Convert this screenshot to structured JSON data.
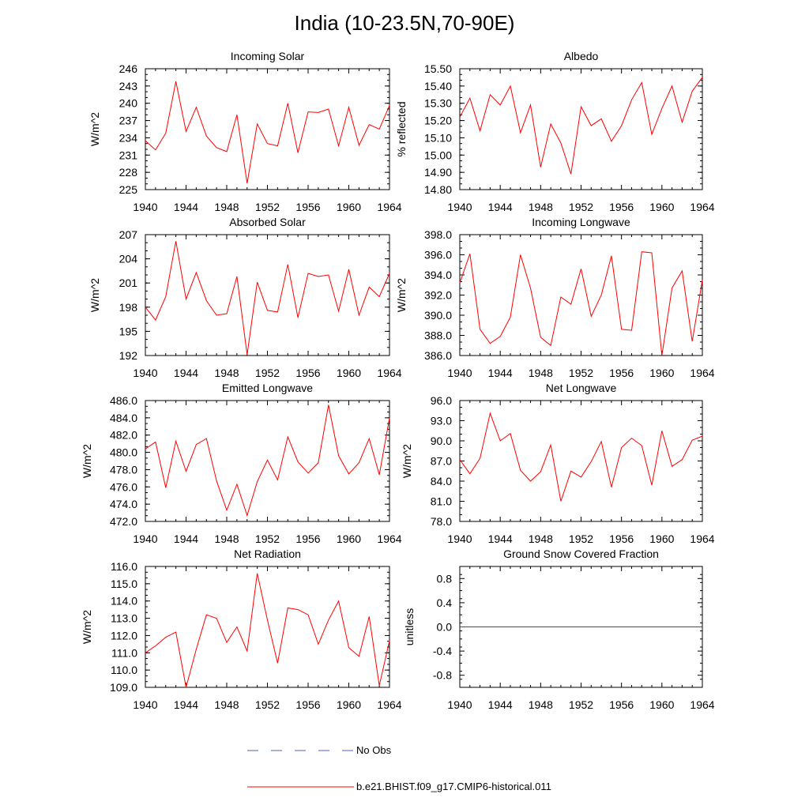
{
  "title": "India (10-23.5N,70-90E)",
  "colors": {
    "model": "#ff0000",
    "obs": "#5060c0",
    "axis": "#000000"
  },
  "legend": [
    {
      "label": "No Obs",
      "style": "dashed",
      "color": "#5060c0"
    },
    {
      "label": "b.e21.BHIST.f09_g17.CMIP6-historical.011",
      "style": "solid",
      "color": "#ff0000"
    }
  ],
  "chart_data": [
    {
      "type": "line",
      "title": "Incoming Solar",
      "ylabel": "W/m^2",
      "xlim": [
        1940,
        1964
      ],
      "ylim": [
        225,
        246
      ],
      "xticks": [
        "1940",
        "1944",
        "1948",
        "1952",
        "1956",
        "1960",
        "1964"
      ],
      "yticks": [
        "225",
        "228",
        "231",
        "234",
        "237",
        "240",
        "243",
        "246"
      ],
      "x": [
        1940,
        1941,
        1942,
        1943,
        1944,
        1945,
        1946,
        1947,
        1948,
        1949,
        1950,
        1951,
        1952,
        1953,
        1954,
        1955,
        1956,
        1957,
        1958,
        1959,
        1960,
        1961,
        1962,
        1963,
        1964
      ],
      "series": [
        {
          "values": [
            233.5,
            231.9,
            234.8,
            243.8,
            235.1,
            239.3,
            234.3,
            232.3,
            231.6,
            238.0,
            226.1,
            236.4,
            233.0,
            232.6,
            240.0,
            231.4,
            238.5,
            238.4,
            239.0,
            232.6,
            239.3,
            232.7,
            236.3,
            235.5,
            239.6
          ]
        }
      ]
    },
    {
      "type": "line",
      "title": "Albedo",
      "ylabel": "% reflected",
      "xlim": [
        1940,
        1964
      ],
      "ylim": [
        14.8,
        15.5
      ],
      "xticks": [
        "1940",
        "1944",
        "1948",
        "1952",
        "1956",
        "1960",
        "1964"
      ],
      "yticks": [
        "14.80",
        "14.90",
        "15.00",
        "15.10",
        "15.20",
        "15.30",
        "15.40",
        "15.50"
      ],
      "x": [
        1940,
        1941,
        1942,
        1943,
        1944,
        1945,
        1946,
        1947,
        1948,
        1949,
        1950,
        1951,
        1952,
        1953,
        1954,
        1955,
        1956,
        1957,
        1958,
        1959,
        1960,
        1961,
        1962,
        1963,
        1964
      ],
      "series": [
        {
          "values": [
            15.22,
            15.33,
            15.14,
            15.35,
            15.29,
            15.4,
            15.13,
            15.29,
            14.93,
            15.18,
            15.07,
            14.89,
            15.28,
            15.17,
            15.21,
            15.08,
            15.17,
            15.32,
            15.42,
            15.12,
            15.27,
            15.4,
            15.19,
            15.37,
            15.45
          ]
        }
      ]
    },
    {
      "type": "line",
      "title": "Absorbed Solar",
      "ylabel": "W/m^2",
      "xlim": [
        1940,
        1964
      ],
      "ylim": [
        192,
        207
      ],
      "xticks": [
        "1940",
        "1944",
        "1948",
        "1952",
        "1956",
        "1960",
        "1964"
      ],
      "yticks": [
        "192",
        "195",
        "198",
        "201",
        "204",
        "207"
      ],
      "x": [
        1940,
        1941,
        1942,
        1943,
        1944,
        1945,
        1946,
        1947,
        1948,
        1949,
        1950,
        1951,
        1952,
        1953,
        1954,
        1955,
        1956,
        1957,
        1958,
        1959,
        1960,
        1961,
        1962,
        1963,
        1964
      ],
      "series": [
        {
          "values": [
            198.0,
            196.4,
            199.3,
            206.2,
            199.0,
            202.3,
            198.8,
            197.0,
            197.2,
            201.8,
            192.1,
            201.1,
            197.6,
            197.4,
            203.3,
            196.7,
            202.2,
            201.8,
            202.0,
            197.5,
            202.7,
            197.0,
            200.5,
            199.3,
            202.2
          ]
        }
      ]
    },
    {
      "type": "line",
      "title": "Incoming Longwave",
      "ylabel": "W/m^2",
      "xlim": [
        1940,
        1964
      ],
      "ylim": [
        386.0,
        398.0
      ],
      "xticks": [
        "1940",
        "1944",
        "1948",
        "1952",
        "1956",
        "1960",
        "1964"
      ],
      "yticks": [
        "386.0",
        "388.0",
        "390.0",
        "392.0",
        "394.0",
        "396.0",
        "398.0"
      ],
      "x": [
        1940,
        1941,
        1942,
        1943,
        1944,
        1945,
        1946,
        1947,
        1948,
        1949,
        1950,
        1951,
        1952,
        1953,
        1954,
        1955,
        1956,
        1957,
        1958,
        1959,
        1960,
        1961,
        1962,
        1963,
        1964
      ],
      "series": [
        {
          "values": [
            393.2,
            396.1,
            388.6,
            387.2,
            387.9,
            389.8,
            396.0,
            392.7,
            387.8,
            387.0,
            391.8,
            391.1,
            394.6,
            389.9,
            392.0,
            395.9,
            388.6,
            388.5,
            396.3,
            396.2,
            386.0,
            392.7,
            394.4,
            387.4,
            393.5
          ]
        }
      ]
    },
    {
      "type": "line",
      "title": "Emitted Longwave",
      "ylabel": "W/m^2",
      "xlim": [
        1940,
        1964
      ],
      "ylim": [
        472.0,
        486.0
      ],
      "xticks": [
        "1940",
        "1944",
        "1948",
        "1952",
        "1956",
        "1960",
        "1964"
      ],
      "yticks": [
        "472.0",
        "474.0",
        "476.0",
        "478.0",
        "480.0",
        "482.0",
        "484.0",
        "486.0"
      ],
      "x": [
        1940,
        1941,
        1942,
        1943,
        1944,
        1945,
        1946,
        1947,
        1948,
        1949,
        1950,
        1951,
        1952,
        1953,
        1954,
        1955,
        1956,
        1957,
        1958,
        1959,
        1960,
        1961,
        1962,
        1963,
        1964
      ],
      "series": [
        {
          "values": [
            480.4,
            481.2,
            475.9,
            481.3,
            477.8,
            480.9,
            481.6,
            476.7,
            473.3,
            476.3,
            472.7,
            476.6,
            479.1,
            476.8,
            481.8,
            478.9,
            477.6,
            478.8,
            485.5,
            479.6,
            477.5,
            478.8,
            481.6,
            477.4,
            484.0
          ]
        }
      ]
    },
    {
      "type": "line",
      "title": "Net Longwave",
      "ylabel": "W/m^2",
      "xlim": [
        1940,
        1964
      ],
      "ylim": [
        78.0,
        96.0
      ],
      "xticks": [
        "1940",
        "1944",
        "1948",
        "1952",
        "1956",
        "1960",
        "1964"
      ],
      "yticks": [
        "78.0",
        "81.0",
        "84.0",
        "87.0",
        "90.0",
        "93.0",
        "96.0"
      ],
      "x": [
        1940,
        1941,
        1942,
        1943,
        1944,
        1945,
        1946,
        1947,
        1948,
        1949,
        1950,
        1951,
        1952,
        1953,
        1954,
        1955,
        1956,
        1957,
        1958,
        1959,
        1960,
        1961,
        1962,
        1963,
        1964
      ],
      "series": [
        {
          "values": [
            87.2,
            85.1,
            87.4,
            94.1,
            90.0,
            91.1,
            85.6,
            84.0,
            85.4,
            89.4,
            81.0,
            85.5,
            84.6,
            86.9,
            89.9,
            83.1,
            89.0,
            90.4,
            89.3,
            83.4,
            91.5,
            86.2,
            87.2,
            90.1,
            90.7
          ]
        }
      ]
    },
    {
      "type": "line",
      "title": "Net Radiation",
      "ylabel": "W/m^2",
      "xlim": [
        1940,
        1964
      ],
      "ylim": [
        109.0,
        116.0
      ],
      "xticks": [
        "1940",
        "1944",
        "1948",
        "1952",
        "1956",
        "1960",
        "1964"
      ],
      "yticks": [
        "109.0",
        "110.0",
        "111.0",
        "112.0",
        "113.0",
        "114.0",
        "115.0",
        "116.0"
      ],
      "x": [
        1940,
        1941,
        1942,
        1943,
        1944,
        1945,
        1946,
        1947,
        1948,
        1949,
        1950,
        1951,
        1952,
        1953,
        1954,
        1955,
        1956,
        1957,
        1958,
        1959,
        1960,
        1961,
        1962,
        1963,
        1964
      ],
      "series": [
        {
          "values": [
            111.0,
            111.4,
            111.9,
            112.2,
            109.0,
            111.2,
            113.2,
            113.0,
            111.6,
            112.5,
            111.1,
            115.6,
            112.9,
            110.4,
            113.6,
            113.5,
            113.2,
            111.5,
            112.9,
            114.0,
            111.3,
            110.8,
            113.1,
            109.1,
            111.7
          ]
        }
      ]
    },
    {
      "type": "line",
      "title": "Ground Snow Covered Fraction",
      "ylabel": "unitless",
      "xlim": [
        1940,
        1964
      ],
      "ylim": [
        -1.0,
        1.0
      ],
      "xticks": [
        "1940",
        "1944",
        "1948",
        "1952",
        "1956",
        "1960",
        "1964"
      ],
      "yticks": [
        "-0.8",
        "-0.4",
        "0.0",
        "0.4",
        "0.8"
      ],
      "ytick_values": [
        -0.8,
        -0.4,
        0.0,
        0.4,
        0.8
      ],
      "x": [
        1940,
        1964
      ],
      "series": [
        {
          "values": [
            0.0,
            0.0
          ]
        }
      ]
    }
  ]
}
